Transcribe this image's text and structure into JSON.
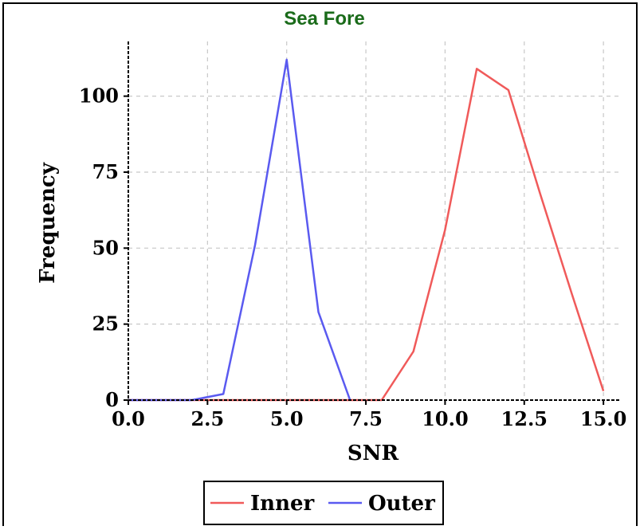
{
  "chart_data": {
    "type": "line",
    "title": "Sea Fore",
    "title_color": "#1a6b1a",
    "xlabel": "SNR",
    "ylabel": "Frequency",
    "xlim": [
      0,
      15.5
    ],
    "ylim": [
      0,
      118
    ],
    "xticks": [
      0,
      2.5,
      5,
      7.5,
      10,
      12.5,
      15
    ],
    "xtick_labels": [
      "0.0",
      "2.5",
      "5.0",
      "7.5",
      "10.0",
      "12.5",
      "15.0"
    ],
    "yticks": [
      0,
      25,
      50,
      75,
      100
    ],
    "ytick_labels": [
      "0",
      "25",
      "50",
      "75",
      "100"
    ],
    "grid": true,
    "legend_position": "bottom-center",
    "series": [
      {
        "name": "Inner",
        "color": "#f05a5a",
        "x": [
          0,
          1,
          2,
          3,
          4,
          5,
          6,
          7,
          8,
          9,
          10,
          11,
          12,
          13,
          14,
          15
        ],
        "y": [
          0,
          0,
          0,
          0,
          0,
          0,
          0,
          0,
          0,
          16,
          56,
          109,
          102,
          68,
          35,
          3
        ]
      },
      {
        "name": "Outer",
        "color": "#5a5af0",
        "x": [
          0,
          1,
          2,
          3,
          4,
          5,
          6,
          7
        ],
        "y": [
          0,
          0,
          0,
          2,
          51,
          112,
          29,
          0
        ]
      }
    ]
  }
}
